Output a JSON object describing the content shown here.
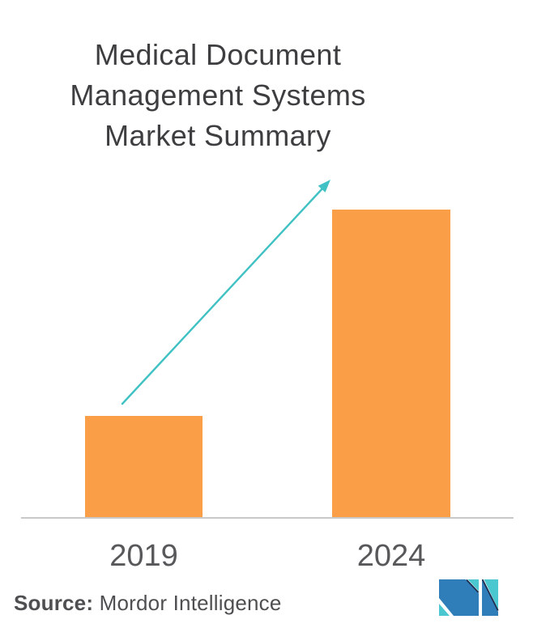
{
  "title": {
    "lines": [
      "Medical Document",
      "Management Systems",
      "Market Summary"
    ]
  },
  "chart_data": {
    "type": "bar",
    "title": "Medical Document Management Systems Market Summary",
    "categories": [
      "2019",
      "2024"
    ],
    "relative_values": [
      0.33,
      1.0
    ],
    "values_note": "no numeric axis or data labels shown; 2024 bar is about 3x the height of the 2019 bar",
    "xlabel": "",
    "ylabel": "",
    "grid": false,
    "legend": false,
    "bar_color": "#FA9E47",
    "annotations": [
      {
        "type": "growth-arrow",
        "from": "2019",
        "to": "2024",
        "color": "#40C1C3"
      }
    ]
  },
  "source": {
    "label": "Source:",
    "text": " Mordor Intelligence"
  },
  "logo": {
    "name": "mordor-intelligence-logo"
  },
  "colors": {
    "background": "#FFFFFF",
    "bar": "#FA9E47",
    "arrow": "#40C1C3",
    "title_text": "#3E3E40",
    "axis_label": "#58585B",
    "source_text": "#4F4F51",
    "axis_line": "#C9C9C9",
    "logo_blue": "#2F7DB9",
    "logo_teal": "#4BC7CF",
    "logo_navy": "#1D2D4E"
  }
}
